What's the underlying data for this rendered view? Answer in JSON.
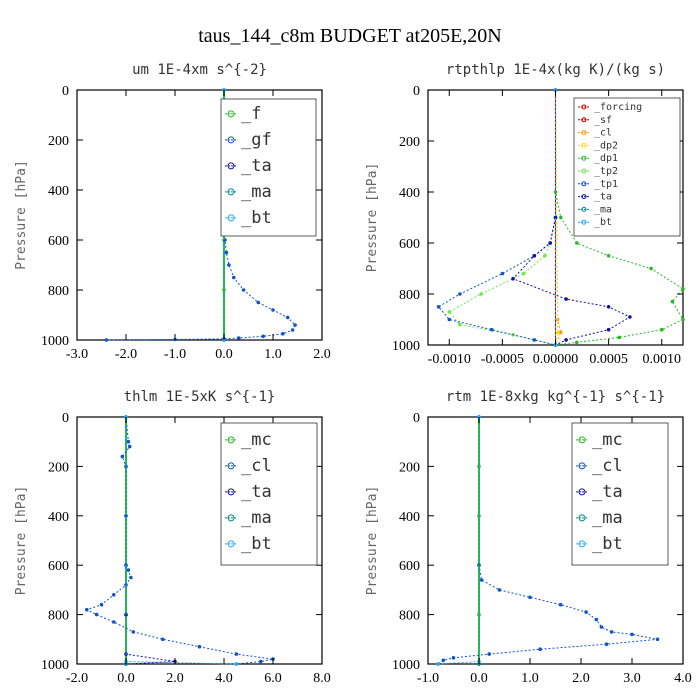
{
  "figure": {
    "title": "taus_144_c8m  BUDGET at205E,20N"
  },
  "colors": {
    "green": "#22bb22",
    "lightgreen": "#66ee44",
    "blue": "#1155cc",
    "navy": "#1111aa",
    "cyan": "#22aaff",
    "red": "#cc0000",
    "orange": "#ff9900",
    "yellow": "#ffdd00",
    "teal": "#008888"
  },
  "chart_data": [
    {
      "type": "line",
      "title": "um  1E-4xm s^{-2}",
      "ylabel": "Pressure [hPa]",
      "xlim": [
        -3.0,
        2.0
      ],
      "ylim": [
        1000,
        0
      ],
      "xticks": [
        "-3.0",
        "-2.0",
        "-1.0",
        "0.0",
        "1.0",
        "2.0"
      ],
      "yticks": [
        "0",
        "200",
        "400",
        "600",
        "800",
        "1000"
      ],
      "legend_entries": [
        "_f",
        "_gf",
        "_ta",
        "_ma",
        "_bt"
      ],
      "series": [
        {
          "name": "_f",
          "color": "#22bb22",
          "x": [
            0,
            0,
            0,
            0,
            0,
            0
          ],
          "y": [
            0,
            200,
            400,
            600,
            800,
            1000
          ]
        },
        {
          "name": "_gf",
          "color": "#1155cc",
          "x": [
            0,
            0,
            0.01,
            0.02,
            0.05,
            0.1,
            0.2,
            0.4,
            0.7,
            1.0,
            1.3,
            1.45,
            1.4,
            1.2,
            0.8,
            0.3,
            0,
            -1.0,
            -2.4
          ],
          "y": [
            0,
            300,
            500,
            600,
            650,
            700,
            750,
            800,
            850,
            880,
            910,
            940,
            960,
            975,
            985,
            992,
            995,
            998,
            1000
          ]
        },
        {
          "name": "_ta",
          "color": "#1111aa",
          "x": [
            0,
            0,
            0
          ],
          "y": [
            0,
            500,
            1000
          ]
        },
        {
          "name": "_ma",
          "color": "#008888",
          "x": [
            0,
            0
          ],
          "y": [
            0,
            1000
          ]
        },
        {
          "name": "_bt",
          "color": "#22aaff",
          "x": [
            0,
            0,
            0
          ],
          "y": [
            0,
            500,
            1000
          ]
        }
      ]
    },
    {
      "type": "line",
      "title": "rtpthlp  1E-4x(kg K)/(kg s)",
      "ylabel": "Pressure [hPa]",
      "xlim": [
        -0.0012,
        0.0012
      ],
      "ylim": [
        1000,
        0
      ],
      "xticks": [
        "-0.0010",
        "-0.0005",
        "0.00000",
        "0.0005",
        "0.0010"
      ],
      "yticks": [
        "0",
        "200",
        "400",
        "600",
        "800",
        "1000"
      ],
      "legend_entries": [
        "_forcing",
        "_sf",
        "_cl",
        "_dp2",
        "_dp1",
        "_tp2",
        "_tp1",
        "_ta",
        "_ma",
        "_bt"
      ],
      "series": [
        {
          "name": "_forcing",
          "color": "#cc0000",
          "x": [
            0,
            0
          ],
          "y": [
            0,
            1000
          ]
        },
        {
          "name": "_sf",
          "color": "#cc0000",
          "x": [
            0,
            0
          ],
          "y": [
            0,
            1000
          ]
        },
        {
          "name": "_cl",
          "color": "#ff9900",
          "x": [
            0,
            2e-05,
            5e-05,
            0
          ],
          "y": [
            0,
            900,
            950,
            1000
          ]
        },
        {
          "name": "_dp2",
          "color": "#ffdd00",
          "x": [
            0,
            2e-05,
            0
          ],
          "y": [
            0,
            950,
            1000
          ]
        },
        {
          "name": "_dp1",
          "color": "#22bb22",
          "x": [
            0,
            0,
            5e-05,
            0.0002,
            0.0005,
            0.0009,
            0.0012,
            0.0011,
            0.0012,
            0.001,
            0.0006,
            0.0002,
            0
          ],
          "y": [
            0,
            400,
            500,
            600,
            650,
            700,
            780,
            830,
            900,
            940,
            970,
            990,
            1000
          ]
        },
        {
          "name": "_tp2",
          "color": "#66ee44",
          "x": [
            0,
            0,
            -5e-05,
            -0.0001,
            -0.0003,
            -0.0007,
            -0.001,
            -0.0009,
            -0.0004,
            0
          ],
          "y": [
            0,
            500,
            600,
            650,
            720,
            800,
            870,
            920,
            960,
            1000
          ]
        },
        {
          "name": "_tp1",
          "color": "#1155cc",
          "x": [
            0,
            0,
            -5e-05,
            -0.0002,
            -0.0005,
            -0.0009,
            -0.0011,
            -0.001,
            -0.0006,
            -0.0002,
            0
          ],
          "y": [
            0,
            500,
            600,
            650,
            720,
            800,
            850,
            900,
            940,
            980,
            1000
          ]
        },
        {
          "name": "_ta",
          "color": "#1111aa",
          "x": [
            0,
            0,
            -5e-05,
            -0.0002,
            -0.0004,
            0.0001,
            0.0005,
            0.0007,
            0.0005,
            0.0001,
            0
          ],
          "y": [
            0,
            500,
            600,
            650,
            740,
            820,
            850,
            890,
            940,
            980,
            1000
          ]
        },
        {
          "name": "_ma",
          "color": "#008888",
          "x": [
            0,
            0
          ],
          "y": [
            0,
            1000
          ]
        },
        {
          "name": "_bt",
          "color": "#22aaff",
          "x": [
            0,
            0
          ],
          "y": [
            0,
            1000
          ]
        }
      ]
    },
    {
      "type": "line",
      "title": "thlm  1E-5xK s^{-1}",
      "ylabel": "Pressure [hPa]",
      "xlim": [
        -2.0,
        8.0
      ],
      "ylim": [
        1000,
        0
      ],
      "xticks": [
        "-2.0",
        "0.0",
        "2.0",
        "4.0",
        "6.0",
        "8.0"
      ],
      "yticks": [
        "0",
        "200",
        "400",
        "600",
        "800",
        "1000"
      ],
      "legend_entries": [
        "_mc",
        "_cl",
        "_ta",
        "_ma",
        "_bt"
      ],
      "series": [
        {
          "name": "_mc",
          "color": "#22bb22",
          "x": [
            0,
            0,
            0,
            0,
            0,
            0
          ],
          "y": [
            0,
            200,
            400,
            600,
            800,
            1000
          ]
        },
        {
          "name": "_cl",
          "color": "#1155cc",
          "x": [
            0,
            0.1,
            0.15,
            -0.15,
            0,
            0,
            0,
            0.1,
            0.2,
            0,
            -0.5,
            -1.0,
            -1.6,
            -1.2,
            -0.5,
            0.3,
            1.5,
            3.0,
            4.5,
            6.0,
            5.5,
            4.5
          ],
          "y": [
            0,
            100,
            120,
            160,
            200,
            400,
            600,
            620,
            650,
            680,
            720,
            760,
            780,
            800,
            830,
            870,
            900,
            930,
            960,
            980,
            990,
            1000
          ]
        },
        {
          "name": "_ta",
          "color": "#1111aa",
          "x": [
            0,
            0,
            0,
            2.0,
            0
          ],
          "y": [
            0,
            800,
            960,
            990,
            1000
          ]
        },
        {
          "name": "_ma",
          "color": "#008888",
          "x": [
            0,
            0
          ],
          "y": [
            0,
            1000
          ]
        },
        {
          "name": "_bt",
          "color": "#22aaff",
          "x": [
            0,
            0,
            4.5
          ],
          "y": [
            0,
            990,
            1000
          ]
        }
      ]
    },
    {
      "type": "line",
      "title": "rtm  1E-8xkg kg^{-1} s^{-1}",
      "ylabel": "Pressure [hPa]",
      "xlim": [
        -1.0,
        4.0
      ],
      "ylim": [
        1000,
        0
      ],
      "xticks": [
        "-1.0",
        "0.0",
        "1.0",
        "2.0",
        "3.0",
        "4.0"
      ],
      "yticks": [
        "0",
        "200",
        "400",
        "600",
        "800",
        "1000"
      ],
      "legend_entries": [
        "_mc",
        "_cl",
        "_ta",
        "_ma",
        "_bt"
      ],
      "series": [
        {
          "name": "_mc",
          "color": "#22bb22",
          "x": [
            0,
            0,
            0,
            0,
            0,
            0
          ],
          "y": [
            0,
            200,
            400,
            600,
            800,
            1000
          ]
        },
        {
          "name": "_cl",
          "color": "#1155cc",
          "x": [
            0,
            0,
            0.05,
            0.4,
            1.0,
            1.6,
            2.1,
            2.3,
            2.4,
            2.6,
            3.0,
            3.5,
            2.5,
            1.2,
            0.2,
            -0.5,
            -0.7,
            -0.8
          ],
          "y": [
            0,
            600,
            660,
            700,
            730,
            760,
            790,
            820,
            850,
            870,
            880,
            900,
            920,
            940,
            960,
            975,
            985,
            1000
          ]
        },
        {
          "name": "_ta",
          "color": "#1111aa",
          "x": [
            0,
            0
          ],
          "y": [
            0,
            1000
          ]
        },
        {
          "name": "_ma",
          "color": "#008888",
          "x": [
            0,
            0
          ],
          "y": [
            0,
            1000
          ]
        },
        {
          "name": "_bt",
          "color": "#22aaff",
          "x": [
            0,
            0,
            -0.8
          ],
          "y": [
            0,
            990,
            1000
          ]
        }
      ]
    }
  ]
}
